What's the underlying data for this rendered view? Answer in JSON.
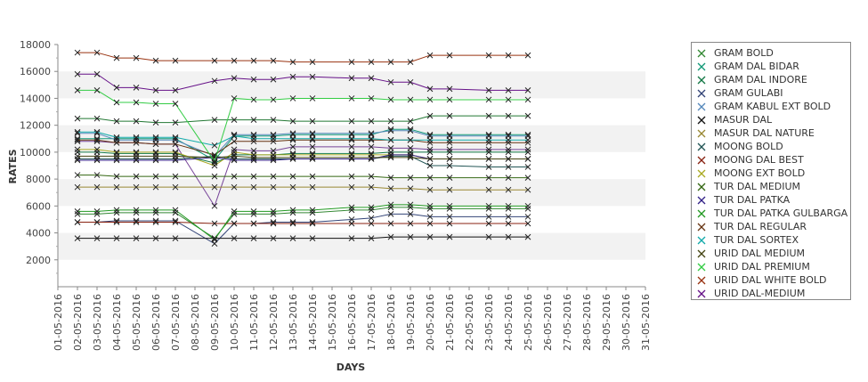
{
  "chart_data": {
    "type": "line",
    "xlabel": "DAYS",
    "ylabel": "RATES",
    "ylim": [
      0,
      18000
    ],
    "yticks": [
      2000,
      4000,
      6000,
      8000,
      10000,
      12000,
      14000,
      16000,
      18000
    ],
    "categories": [
      "01-05-2016",
      "02-05-2016",
      "03-05-2016",
      "04-05-2016",
      "05-05-2016",
      "06-05-2016",
      "07-05-2016",
      "08-05-2016",
      "09-05-2016",
      "10-05-2016",
      "11-05-2016",
      "12-05-2016",
      "13-05-2016",
      "14-05-2016",
      "15-05-2016",
      "16-05-2016",
      "17-05-2016",
      "18-05-2016",
      "19-05-2016",
      "20-05-2016",
      "21-05-2016",
      "22-05-2016",
      "23-05-2016",
      "24-05-2016",
      "25-05-2016",
      "26-05-2016",
      "27-05-2016",
      "28-05-2016",
      "29-05-2016",
      "30-05-2016",
      "31-05-2016"
    ],
    "legend_position": "right",
    "grid": "alternating horizontal bands",
    "series": [
      {
        "name": "GRAM BOLD",
        "color": "#338833",
        "values": [
          null,
          5400,
          5400,
          5500,
          5500,
          5500,
          5500,
          null,
          3600,
          5400,
          5400,
          5400,
          5500,
          5500,
          null,
          5700,
          5700,
          5900,
          5900,
          5800,
          5800,
          null,
          5800,
          5800,
          5800,
          null,
          null,
          null,
          null,
          null,
          null
        ]
      },
      {
        "name": "GRAM DAL BIDAR",
        "color": "#119977",
        "values": [
          null,
          11000,
          11000,
          11000,
          11000,
          11000,
          11000,
          null,
          9400,
          11200,
          11200,
          11200,
          11300,
          11300,
          null,
          11300,
          11300,
          11700,
          11700,
          11300,
          11300,
          null,
          11300,
          11300,
          11300,
          null,
          null,
          null,
          null,
          null,
          null
        ]
      },
      {
        "name": "GRAM DAL INDORE",
        "color": "#117744",
        "values": [
          null,
          10000,
          10000,
          9900,
          9900,
          9900,
          9900,
          null,
          9200,
          9800,
          9800,
          9800,
          9900,
          9900,
          null,
          9900,
          9900,
          10000,
          10000,
          10000,
          10000,
          null,
          10000,
          10000,
          10000,
          null,
          null,
          null,
          null,
          null,
          null
        ]
      },
      {
        "name": "GRAM GULABI",
        "color": "#334477",
        "values": [
          null,
          4800,
          4800,
          4900,
          4900,
          4900,
          4900,
          null,
          3200,
          4700,
          4700,
          4800,
          4800,
          4800,
          null,
          5000,
          5100,
          5400,
          5400,
          5200,
          5200,
          null,
          5200,
          5200,
          5200,
          null,
          null,
          null,
          null,
          null,
          null
        ]
      },
      {
        "name": "GRAM KABUL EXT BOLD",
        "color": "#5588bb",
        "values": [
          null,
          11400,
          11400,
          10900,
          10900,
          10900,
          10900,
          null,
          9700,
          11300,
          11300,
          11300,
          11400,
          11400,
          null,
          11400,
          11400,
          11600,
          11600,
          11200,
          11200,
          null,
          11200,
          11200,
          11200,
          null,
          null,
          null,
          null,
          null,
          null
        ]
      },
      {
        "name": "MASUR DAL",
        "color": "#111111",
        "values": [
          null,
          3600,
          3600,
          3600,
          3600,
          3600,
          3600,
          null,
          3600,
          3600,
          3600,
          3600,
          3600,
          3600,
          null,
          3600,
          3600,
          3700,
          3700,
          3700,
          3700,
          null,
          3700,
          3700,
          3700,
          null,
          null,
          null,
          null,
          null,
          null
        ]
      },
      {
        "name": "MASUR DAL NATURE",
        "color": "#998833",
        "values": [
          null,
          7400,
          7400,
          7400,
          7400,
          7400,
          7400,
          null,
          7400,
          7400,
          7400,
          7400,
          7400,
          7400,
          null,
          7400,
          7400,
          7300,
          7300,
          7200,
          7200,
          null,
          7200,
          7200,
          7200,
          null,
          null,
          null,
          null,
          null,
          null
        ]
      },
      {
        "name": "MOONG BOLD",
        "color": "#225555",
        "values": [
          null,
          9500,
          9500,
          9500,
          9500,
          9500,
          9500,
          null,
          9700,
          9500,
          9500,
          9500,
          9500,
          9500,
          null,
          9500,
          9500,
          9700,
          9700,
          9000,
          9000,
          null,
          8900,
          8900,
          8900,
          null,
          null,
          null,
          null,
          null,
          null
        ]
      },
      {
        "name": "MOONG DAL BEST",
        "color": "#882211",
        "values": [
          null,
          4800,
          4800,
          4800,
          4800,
          4800,
          4800,
          null,
          4700,
          4700,
          4700,
          4700,
          4700,
          4700,
          null,
          4700,
          4700,
          4700,
          4700,
          4700,
          4700,
          null,
          4700,
          4700,
          4700,
          null,
          null,
          null,
          null,
          null,
          null
        ]
      },
      {
        "name": "MOONG EXT BOLD",
        "color": "#aaaa22",
        "values": [
          null,
          10200,
          10200,
          10000,
          10000,
          10000,
          10000,
          null,
          9000,
          10000,
          9800,
          9800,
          9800,
          9800,
          null,
          9800,
          9800,
          9800,
          9800,
          9500,
          9500,
          null,
          9500,
          9500,
          9500,
          null,
          null,
          null,
          null,
          null,
          null
        ]
      },
      {
        "name": "TUR DAL MEDIUM",
        "color": "#336611",
        "values": [
          null,
          8300,
          8300,
          8200,
          8200,
          8200,
          8200,
          null,
          8200,
          8200,
          8200,
          8200,
          8200,
          8200,
          null,
          8200,
          8200,
          8100,
          8100,
          8100,
          8100,
          null,
          8100,
          8100,
          8100,
          null,
          null,
          null,
          null,
          null,
          null
        ]
      },
      {
        "name": "TUR DAL PATKA",
        "color": "#332288",
        "values": [
          null,
          9400,
          9400,
          9400,
          9400,
          9400,
          9400,
          null,
          9600,
          9400,
          9400,
          9400,
          9500,
          9500,
          null,
          9500,
          9500,
          9800,
          9800,
          9500,
          9500,
          null,
          9500,
          9500,
          9500,
          null,
          null,
          null,
          null,
          null,
          null
        ]
      },
      {
        "name": "TUR DAL PATKA GULBARGA",
        "color": "#229922",
        "values": [
          null,
          5600,
          5600,
          5700,
          5700,
          5700,
          5700,
          null,
          3500,
          5600,
          5600,
          5600,
          5700,
          5700,
          null,
          5900,
          5900,
          6100,
          6100,
          6000,
          6000,
          null,
          6000,
          6000,
          6000,
          null,
          null,
          null,
          null,
          null,
          null
        ]
      },
      {
        "name": "TUR DAL REGULAR",
        "color": "#663311",
        "values": [
          null,
          10900,
          10900,
          10700,
          10700,
          10600,
          10600,
          null,
          9800,
          10800,
          10800,
          10800,
          10900,
          10900,
          null,
          10900,
          10900,
          10900,
          10900,
          10700,
          10700,
          null,
          10700,
          10700,
          10700,
          null,
          null,
          null,
          null,
          null,
          null
        ]
      },
      {
        "name": "TUR DAL SORTEX",
        "color": "#11aaaa",
        "values": [
          null,
          11500,
          11500,
          11100,
          11100,
          11100,
          11100,
          null,
          10500,
          11200,
          11000,
          11000,
          11000,
          11000,
          null,
          11000,
          11000,
          10900,
          10900,
          10900,
          10900,
          null,
          10900,
          10900,
          10900,
          null,
          null,
          null,
          null,
          null,
          null
        ]
      },
      {
        "name": "URID DAL MEDIUM",
        "color": "#444411",
        "values": [
          null,
          9700,
          9700,
          9700,
          9700,
          9700,
          9700,
          null,
          9600,
          9700,
          9600,
          9600,
          9600,
          9600,
          null,
          9600,
          9600,
          9600,
          9600,
          9500,
          9500,
          null,
          9500,
          9500,
          9500,
          null,
          null,
          null,
          null,
          null,
          null
        ]
      },
      {
        "name": "URID DAL PREMIUM",
        "color": "#33cc44",
        "values": [
          null,
          14600,
          14600,
          13700,
          13700,
          13600,
          13600,
          null,
          9300,
          14000,
          13900,
          13900,
          14000,
          14000,
          null,
          14000,
          14000,
          13900,
          13900,
          13900,
          13900,
          null,
          13900,
          13900,
          13900,
          null,
          null,
          null,
          null,
          null,
          null
        ]
      },
      {
        "name": "URID DAL WHITE BOLD",
        "color": "#993311",
        "values": [
          null,
          17400,
          17400,
          17000,
          17000,
          16800,
          16800,
          null,
          16800,
          16800,
          16800,
          16800,
          16700,
          16700,
          null,
          16700,
          16700,
          16700,
          16700,
          17200,
          17200,
          null,
          17200,
          17200,
          17200,
          null,
          null,
          null,
          null,
          null,
          null
        ]
      },
      {
        "name": "URID DAL-MEDIUM",
        "color": "#661188",
        "values": [
          null,
          15800,
          15800,
          14800,
          14800,
          14600,
          14600,
          null,
          15300,
          15500,
          15400,
          15400,
          15600,
          15600,
          null,
          15500,
          15500,
          15200,
          15200,
          14700,
          14700,
          null,
          14600,
          14600,
          14600,
          null,
          null,
          null,
          null,
          null,
          null
        ]
      }
    ],
    "extra_series": [
      {
        "color": "#774499",
        "values": [
          null,
          10800,
          10800,
          10700,
          10700,
          10600,
          10600,
          null,
          6000,
          10200,
          10100,
          10100,
          10400,
          10400,
          null,
          10400,
          10400,
          10300,
          10300,
          10200,
          10200,
          null,
          10200,
          10200,
          10200,
          null,
          null,
          null,
          null,
          null,
          null
        ]
      },
      {
        "color": "#227733",
        "values": [
          null,
          12500,
          12500,
          12300,
          12300,
          12200,
          12200,
          null,
          12400,
          12400,
          12400,
          12400,
          12300,
          12300,
          null,
          12300,
          12300,
          12300,
          12300,
          12700,
          12700,
          null,
          12700,
          12700,
          12700,
          null,
          null,
          null,
          null,
          null,
          null
        ]
      }
    ]
  }
}
